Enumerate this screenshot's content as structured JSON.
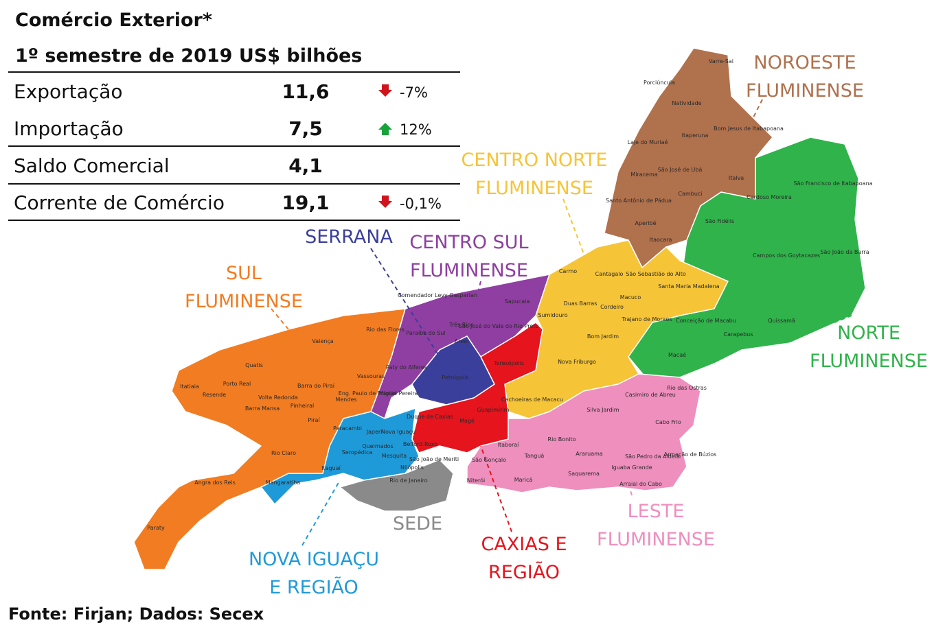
{
  "header": {
    "title": "Comércio Exterior*",
    "subtitle": "1º semestre de 2019 US$ bilhões"
  },
  "table": {
    "rows": [
      {
        "label": "Exportação",
        "value": "11,6",
        "change": "-7%"
      },
      {
        "label": "Importação",
        "value": "7,5",
        "change": "12%"
      },
      {
        "label": "Saldo Comercial",
        "value": "4,1"
      },
      {
        "label": "Corrente de Comércio",
        "value": "19,1",
        "change": "-0,1%"
      }
    ]
  },
  "regions": [
    {
      "lines": [
        "NOROESTE",
        "FLUMINENSE"
      ],
      "color": "#b0714d"
    },
    {
      "lines": [
        "NORTE",
        "FLUMINENSE"
      ],
      "color": "#2fb34a"
    },
    {
      "lines": [
        "CENTRO NORTE",
        "FLUMINENSE"
      ],
      "color": "#f6c437"
    },
    {
      "lines": [
        "SERRANA"
      ],
      "color": "#3b3f9c"
    },
    {
      "lines": [
        "CENTRO SUL",
        "FLUMINENSE"
      ],
      "color": "#8f3ea1"
    },
    {
      "lines": [
        "SUL",
        "FLUMINENSE"
      ],
      "color": "#f27c22"
    },
    {
      "lines": [
        "LESTE",
        "FLUMINENSE"
      ],
      "color": "#ee8fbe"
    },
    {
      "lines": [
        "CAXIAS E",
        "REGIÃO"
      ],
      "color": "#e5141d"
    },
    {
      "lines": [
        "NOVA IGUAÇU",
        "E REGIÃO"
      ],
      "color": "#1f9ad9"
    },
    {
      "lines": [
        "SEDE"
      ],
      "color": "#8a8a8a"
    }
  ],
  "municipalities": [
    "Varre-Sai",
    "Porciúncula",
    "Natividade",
    "Itaperuna",
    "Bom Jesus de Itabapoana",
    "Laje do Muriaé",
    "Miracema",
    "São José de Ubá",
    "Italva",
    "Cambuci",
    "Santo Antônio de Pádua",
    "Aperibé",
    "Itaocara",
    "Cardoso Moreira",
    "São Francisco de Itabapoana",
    "São Fidélis",
    "Campos dos Goytacazes",
    "São João da Barra",
    "Conceição de Macabu",
    "Carapebus",
    "Quissamã",
    "Macaé",
    "Carmo",
    "Cantagalo",
    "São Sebastião do Alto",
    "Santa Maria Madalena",
    "Duas Barras",
    "Cordeiro",
    "Macuco",
    "Trajano de Moraes",
    "Sumidouro",
    "Bom Jardim",
    "Nova Friburgo",
    "Cachoeiras de Macacu",
    "Comendador Levy Gasparian",
    "Sapucaia",
    "Três Rios",
    "Paraíba do Sul",
    "Areal",
    "São José do Vale do Rio Preto",
    "Paty do Alferes",
    "Miguel Pereira",
    "Eng. Paulo de Frontin",
    "Vassouras",
    "Mendes",
    "Petrópolis",
    "Teresópolis",
    "Duque de Caxias",
    "Magé",
    "Guapimirim",
    "Belford Roxo",
    "São João de Meriti",
    "Rio das Flores",
    "Valença",
    "Quatis",
    "Porto Real",
    "Itatiaia",
    "Resende",
    "Barra do Piraí",
    "Volta Redonda",
    "Pinheiral",
    "Barra Mansa",
    "Piraí",
    "Rio Claro",
    "Angra dos Reis",
    "Paraty",
    "Paracambi",
    "Japeri",
    "Nova Iguaçu",
    "Queimados",
    "Seropédica",
    "Mesquita",
    "Nilópolis",
    "Itaguaí",
    "Mangaratiba",
    "Rio de Janeiro",
    "Rio das Ostras",
    "Casimiro de Abreu",
    "Silva Jardim",
    "Cabo Frio",
    "Rio Bonito",
    "Itaboraí",
    "Tanguá",
    "São Gonçalo",
    "Niterói",
    "Maricá",
    "Araruama",
    "Saquarema",
    "São Pedro da Aldeia",
    "Iguaba Grande",
    "Armação de Búzios",
    "Arraial do Cabo"
  ],
  "source": "Fonte: Firjan; Dados: Secex"
}
